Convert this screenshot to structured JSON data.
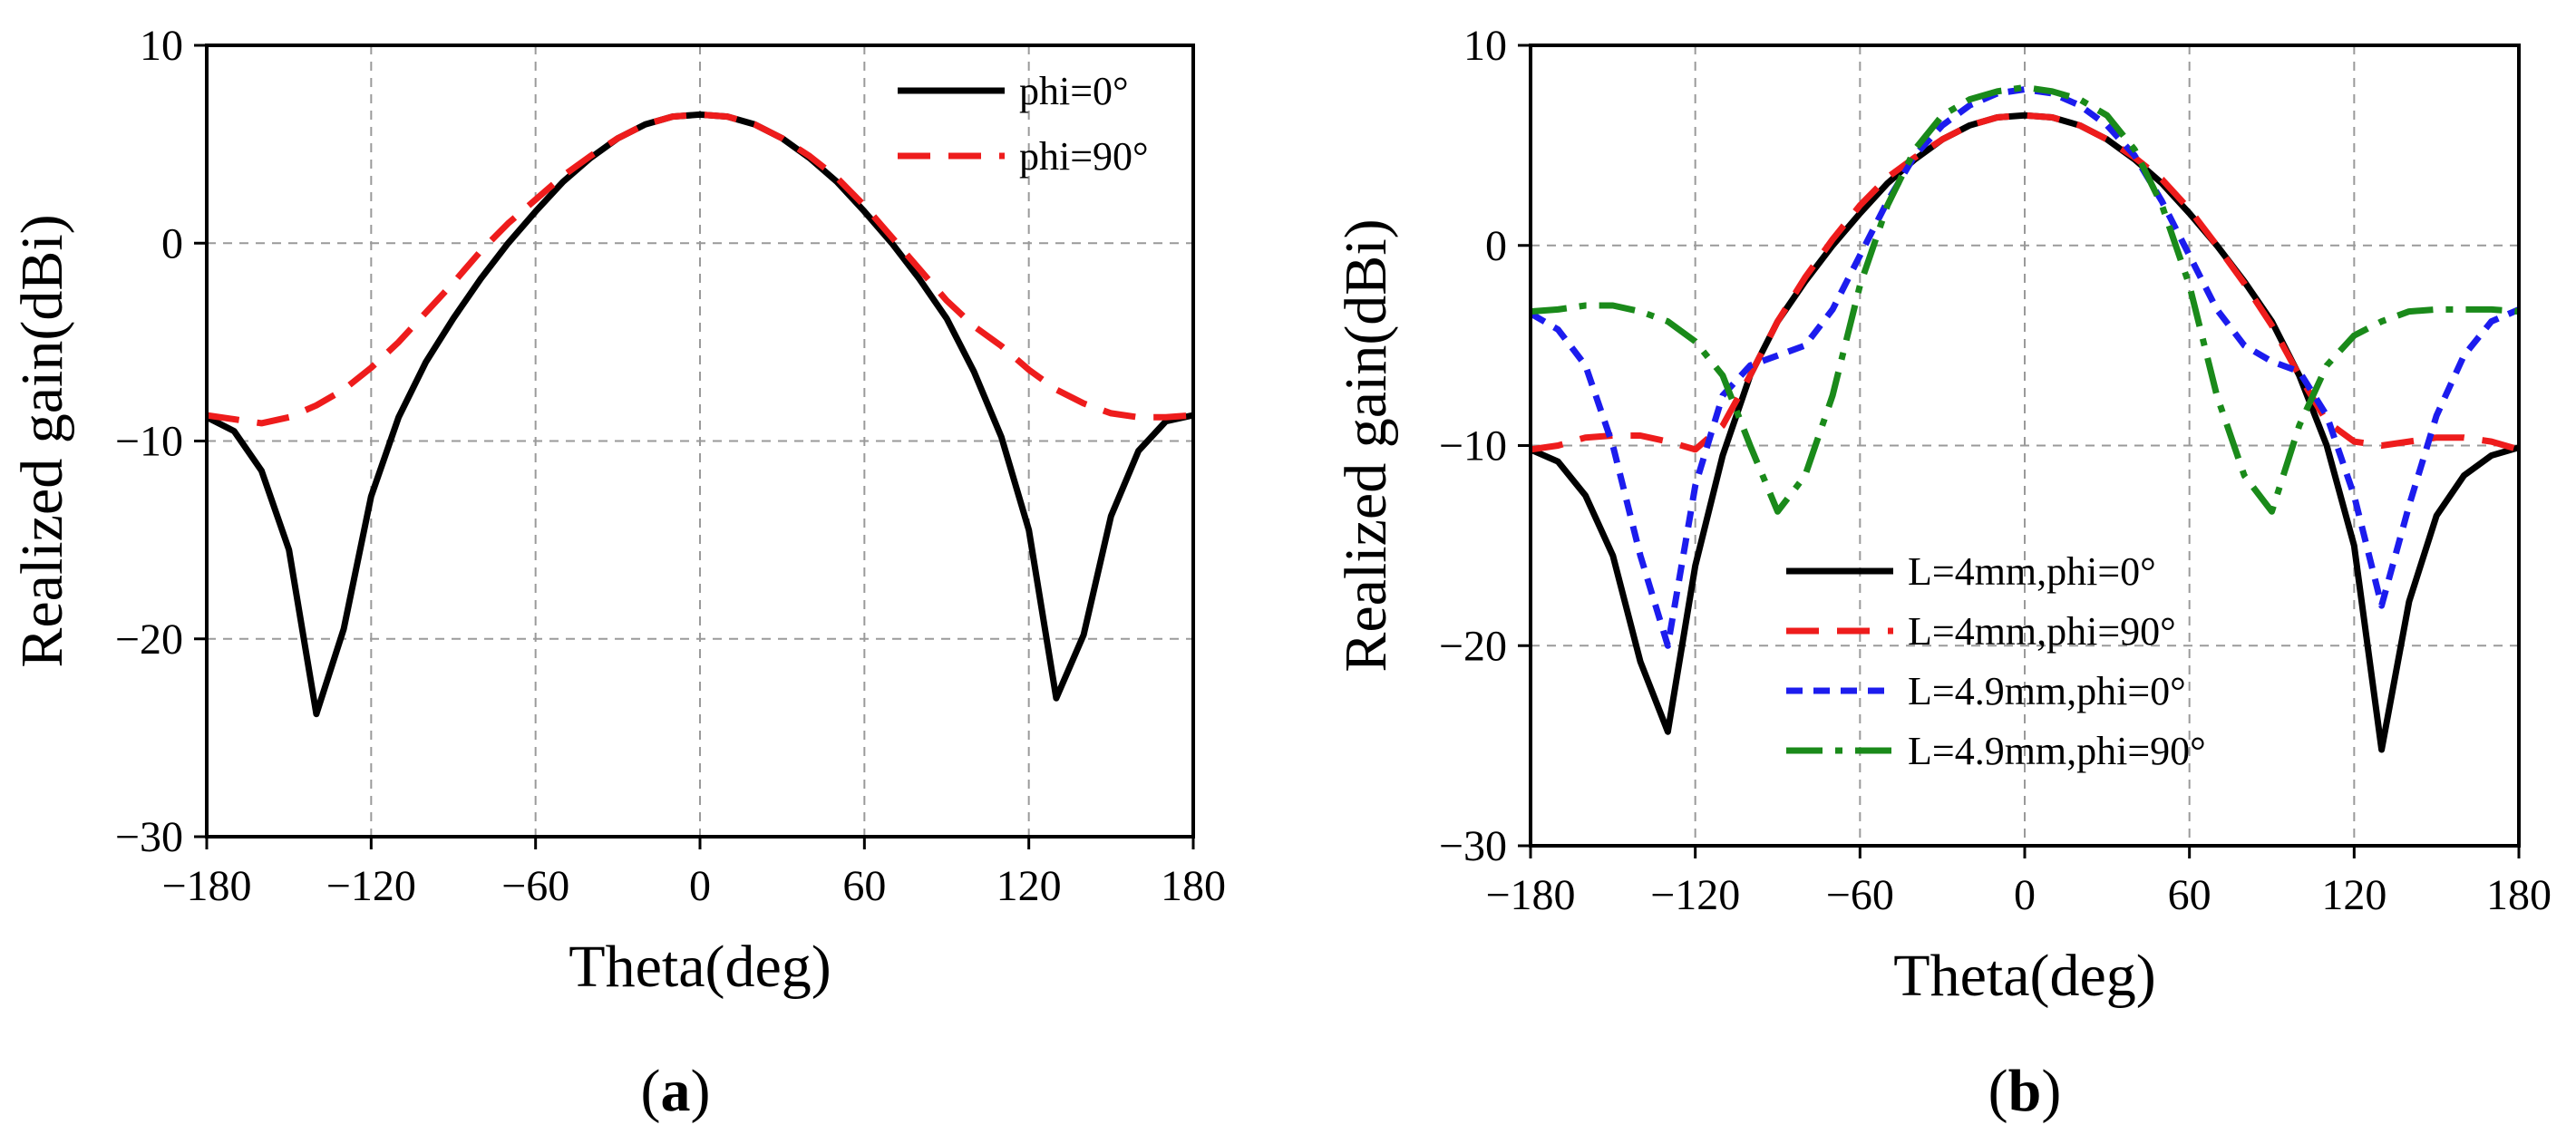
{
  "chart_data": [
    {
      "type": "line",
      "panel": "a",
      "caption": {
        "open": "(",
        "letter": "a",
        "close": ")"
      },
      "xlabel": "Theta(deg)",
      "ylabel": "Realized gain(dBi)",
      "xlim": [
        -180,
        180
      ],
      "ylim": [
        -30,
        10
      ],
      "xticks": [
        -180,
        -120,
        -60,
        0,
        60,
        120,
        180
      ],
      "xtick_labels": [
        "−180",
        "−120",
        "−60",
        "0",
        "60",
        "120",
        "180"
      ],
      "yticks": [
        -30,
        -20,
        -10,
        0,
        10
      ],
      "ytick_labels": [
        "−30",
        "−20",
        "−10",
        "0",
        "10"
      ],
      "grid": true,
      "legend_position": "top-right",
      "series": [
        {
          "name": "phi=0°",
          "color": "#000000",
          "style": "solid",
          "x": [
            -180,
            -170,
            -160,
            -150,
            -140,
            -130,
            -120,
            -110,
            -100,
            -90,
            -80,
            -70,
            -60,
            -50,
            -40,
            -30,
            -20,
            -10,
            0,
            10,
            20,
            30,
            40,
            50,
            60,
            70,
            80,
            90,
            100,
            110,
            120,
            130,
            140,
            150,
            160,
            170,
            180
          ],
          "y": [
            -8.8,
            -9.5,
            -11.5,
            -15.5,
            -23.8,
            -19.5,
            -12.8,
            -8.8,
            -6.0,
            -3.8,
            -1.8,
            0.0,
            1.6,
            3.1,
            4.3,
            5.3,
            6.0,
            6.4,
            6.5,
            6.4,
            6.0,
            5.3,
            4.3,
            3.1,
            1.6,
            0.0,
            -1.8,
            -3.8,
            -6.5,
            -9.8,
            -14.5,
            -23.0,
            -19.8,
            -13.8,
            -10.5,
            -9.0,
            -8.7
          ]
        },
        {
          "name": "phi=90°",
          "color": "#ee1c1c",
          "style": "dashed",
          "x": [
            -180,
            -170,
            -160,
            -150,
            -140,
            -130,
            -120,
            -110,
            -100,
            -90,
            -80,
            -70,
            -60,
            -50,
            -40,
            -30,
            -20,
            -10,
            0,
            10,
            20,
            30,
            40,
            50,
            60,
            70,
            80,
            90,
            100,
            110,
            120,
            130,
            140,
            150,
            160,
            170,
            180
          ],
          "y": [
            -8.7,
            -8.9,
            -9.1,
            -8.8,
            -8.2,
            -7.4,
            -6.3,
            -5.0,
            -3.5,
            -2.0,
            -0.4,
            1.0,
            2.2,
            3.4,
            4.4,
            5.3,
            6.0,
            6.4,
            6.5,
            6.4,
            6.0,
            5.3,
            4.4,
            3.3,
            1.9,
            0.3,
            -1.3,
            -2.9,
            -4.2,
            -5.2,
            -6.4,
            -7.4,
            -8.1,
            -8.6,
            -8.8,
            -8.8,
            -8.7
          ]
        }
      ]
    },
    {
      "type": "line",
      "panel": "b",
      "caption": {
        "open": "(",
        "letter": "b",
        "close": ")"
      },
      "xlabel": "Theta(deg)",
      "ylabel": "Realized gain(dBi)",
      "xlim": [
        -180,
        180
      ],
      "ylim": [
        -30,
        10
      ],
      "xticks": [
        -180,
        -120,
        -60,
        0,
        60,
        120,
        180
      ],
      "xtick_labels": [
        "−180",
        "−120",
        "−60",
        "0",
        "60",
        "120",
        "180"
      ],
      "yticks": [
        -30,
        -20,
        -10,
        0,
        10
      ],
      "ytick_labels": [
        "−30",
        "−20",
        "−10",
        "0",
        "10"
      ],
      "grid": true,
      "legend_position": "bottom-center",
      "series": [
        {
          "name": "L=4mm,phi=0°",
          "color": "#000000",
          "style": "solid",
          "x": [
            -180,
            -170,
            -160,
            -150,
            -140,
            -130,
            -120,
            -110,
            -100,
            -90,
            -80,
            -70,
            -60,
            -50,
            -40,
            -30,
            -20,
            -10,
            0,
            10,
            20,
            30,
            40,
            50,
            60,
            70,
            80,
            90,
            100,
            110,
            120,
            130,
            140,
            150,
            160,
            170,
            180
          ],
          "y": [
            -10.2,
            -10.8,
            -12.5,
            -15.5,
            -20.8,
            -24.3,
            -16.0,
            -10.5,
            -6.5,
            -3.8,
            -1.8,
            0.0,
            1.6,
            3.1,
            4.3,
            5.3,
            6.0,
            6.4,
            6.5,
            6.4,
            6.0,
            5.3,
            4.3,
            3.1,
            1.6,
            0.0,
            -1.8,
            -3.8,
            -6.5,
            -10.0,
            -15.0,
            -25.2,
            -17.8,
            -13.5,
            -11.5,
            -10.5,
            -10.1
          ]
        },
        {
          "name": "L=4mm,phi=90°",
          "color": "#ee1c1c",
          "style": "dashed",
          "x": [
            -180,
            -170,
            -160,
            -150,
            -140,
            -130,
            -120,
            -110,
            -100,
            -90,
            -80,
            -70,
            -60,
            -50,
            -40,
            -30,
            -20,
            -10,
            0,
            10,
            20,
            30,
            40,
            50,
            60,
            70,
            80,
            90,
            100,
            110,
            120,
            130,
            140,
            150,
            160,
            170,
            180
          ],
          "y": [
            -10.2,
            -10.0,
            -9.6,
            -9.5,
            -9.5,
            -9.8,
            -10.2,
            -9.0,
            -6.5,
            -3.8,
            -1.6,
            0.3,
            2.0,
            3.4,
            4.4,
            5.3,
            6.0,
            6.4,
            6.5,
            6.4,
            6.0,
            5.3,
            4.4,
            3.3,
            1.8,
            0.0,
            -1.9,
            -4.0,
            -6.5,
            -8.8,
            -9.8,
            -10.0,
            -9.8,
            -9.6,
            -9.6,
            -9.8,
            -10.2
          ]
        },
        {
          "name": "L=4.9mm,phi=0°",
          "color": "#1c1cee",
          "style": "dotted",
          "x": [
            -180,
            -170,
            -160,
            -150,
            -140,
            -130,
            -120,
            -110,
            -100,
            -90,
            -80,
            -70,
            -60,
            -50,
            -40,
            -30,
            -20,
            -10,
            0,
            10,
            20,
            30,
            40,
            50,
            60,
            70,
            80,
            90,
            100,
            110,
            120,
            130,
            140,
            150,
            160,
            170,
            180
          ],
          "y": [
            -3.4,
            -4.2,
            -6.0,
            -10.0,
            -15.5,
            -20.0,
            -12.0,
            -7.5,
            -6.0,
            -5.5,
            -5.0,
            -3.2,
            -0.5,
            2.2,
            4.5,
            6.0,
            7.0,
            7.6,
            7.8,
            7.6,
            7.0,
            6.0,
            4.5,
            2.2,
            -0.5,
            -3.2,
            -5.0,
            -5.8,
            -6.3,
            -8.5,
            -12.5,
            -18.0,
            -13.0,
            -8.5,
            -5.5,
            -3.8,
            -3.2
          ]
        },
        {
          "name": "L=4.9mm,phi=90°",
          "color": "#1a8a1a",
          "style": "dashdot",
          "x": [
            -180,
            -170,
            -160,
            -150,
            -140,
            -130,
            -120,
            -110,
            -100,
            -90,
            -80,
            -70,
            -60,
            -50,
            -40,
            -30,
            -20,
            -10,
            0,
            10,
            20,
            30,
            40,
            50,
            60,
            70,
            80,
            90,
            100,
            110,
            120,
            130,
            140,
            150,
            160,
            170,
            180
          ],
          "y": [
            -3.3,
            -3.2,
            -3.0,
            -3.0,
            -3.3,
            -3.8,
            -4.8,
            -6.5,
            -10.0,
            -13.3,
            -11.5,
            -7.5,
            -2.0,
            2.0,
            4.8,
            6.5,
            7.3,
            7.7,
            7.9,
            7.7,
            7.3,
            6.5,
            4.8,
            2.0,
            -2.0,
            -7.5,
            -11.5,
            -13.3,
            -9.0,
            -6.0,
            -4.5,
            -3.8,
            -3.3,
            -3.2,
            -3.2,
            -3.2,
            -3.3
          ]
        }
      ]
    }
  ]
}
